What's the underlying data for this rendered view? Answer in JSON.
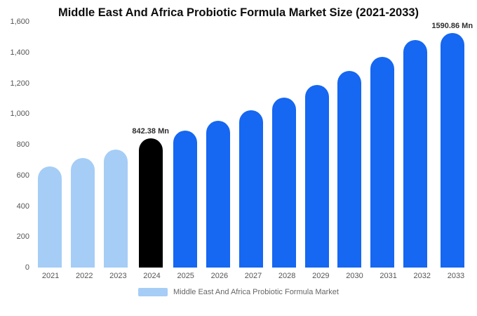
{
  "chart_data": {
    "type": "bar",
    "title": "Middle East And Africa Probiotic Formula Market Size (2021-2033)",
    "legend": "Middle East And Africa Probiotic Formula Market",
    "categories": [
      "2021",
      "2022",
      "2023",
      "2024",
      "2025",
      "2026",
      "2027",
      "2028",
      "2029",
      "2030",
      "2031",
      "2032",
      "2033"
    ],
    "values": [
      660,
      714,
      770,
      842.38,
      890,
      955,
      1025,
      1105,
      1190,
      1280,
      1370,
      1480,
      1590.86
    ],
    "ylim": [
      0,
      1600
    ],
    "ytick_values": [
      0,
      200,
      400,
      600,
      800,
      1000,
      1200,
      1400,
      1600
    ],
    "ytick_labels": [
      "0",
      "200",
      "400",
      "600",
      "800",
      "1,000",
      "1,200",
      "1,400",
      "1,600"
    ],
    "xlabel": "",
    "ylabel": "",
    "grid": "off",
    "legend_position": "bottom-center",
    "palette": {
      "past": "#a5cdf6",
      "current": "#000000",
      "future": "#1667f1"
    },
    "color_keys": [
      "past",
      "past",
      "past",
      "current",
      "future",
      "future",
      "future",
      "future",
      "future",
      "future",
      "future",
      "future",
      "future"
    ],
    "annotations": [
      {
        "category": "2024",
        "text": "842.38 Mn"
      },
      {
        "category": "2033",
        "text": "1590.86 Mn"
      }
    ]
  }
}
